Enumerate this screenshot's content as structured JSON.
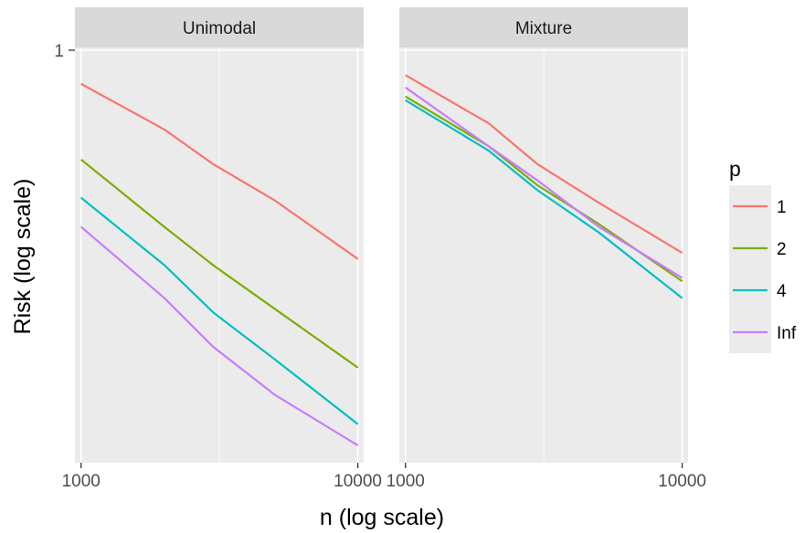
{
  "chart_data": {
    "type": "line",
    "xlabel": "n (log scale)",
    "ylabel": "Risk (log scale)",
    "x_scale": "log",
    "y_scale": "log",
    "xlim": [
      950,
      10500
    ],
    "x_ticks": [
      1000,
      10000
    ],
    "x_tick_labels": [
      "1000",
      "10000"
    ],
    "y_ticks": [
      1
    ],
    "y_tick_labels": [
      "1"
    ],
    "grid": true,
    "legend": {
      "title": "p",
      "position": "right",
      "entries": [
        "1",
        "2",
        "4",
        "Inf"
      ]
    },
    "colors": {
      "1": "#F8766D",
      "2": "#7CAE00",
      "4": "#00BFC4",
      "Inf": "#C77CFF"
    },
    "facets": [
      {
        "label": "Unimodal",
        "series": [
          {
            "name": "1",
            "x": [
              1000,
              2000,
              3000,
              5000,
              10000
            ],
            "y": [
              0.9,
              0.78,
              0.7,
              0.625,
              0.52
            ]
          },
          {
            "name": "2",
            "x": [
              1000,
              2000,
              3000,
              5000,
              10000
            ],
            "y": [
              0.71,
              0.575,
              0.51,
              0.445,
              0.37
            ]
          },
          {
            "name": "4",
            "x": [
              1000,
              2000,
              3000,
              5000,
              10000
            ],
            "y": [
              0.63,
              0.51,
              0.44,
              0.38,
              0.31
            ]
          },
          {
            "name": "Inf",
            "x": [
              1000,
              2000,
              3000,
              5000,
              10000
            ],
            "y": [
              0.575,
              0.46,
              0.395,
              0.34,
              0.29
            ]
          }
        ]
      },
      {
        "label": "Mixture",
        "series": [
          {
            "name": "1",
            "x": [
              1000,
              2000,
              3000,
              5000,
              10000
            ],
            "y": [
              0.925,
              0.795,
              0.7,
              0.62,
              0.53
            ]
          },
          {
            "name": "2",
            "x": [
              1000,
              2000,
              3000,
              5000,
              10000
            ],
            "y": [
              0.865,
              0.74,
              0.655,
              0.58,
              0.485
            ]
          },
          {
            "name": "4",
            "x": [
              1000,
              2000,
              3000,
              5000,
              10000
            ],
            "y": [
              0.855,
              0.73,
              0.645,
              0.565,
              0.46
            ]
          },
          {
            "name": "Inf",
            "x": [
              1000,
              2000,
              3000,
              5000,
              10000
            ],
            "y": [
              0.89,
              0.74,
              0.665,
              0.575,
              0.49
            ]
          }
        ]
      }
    ]
  }
}
